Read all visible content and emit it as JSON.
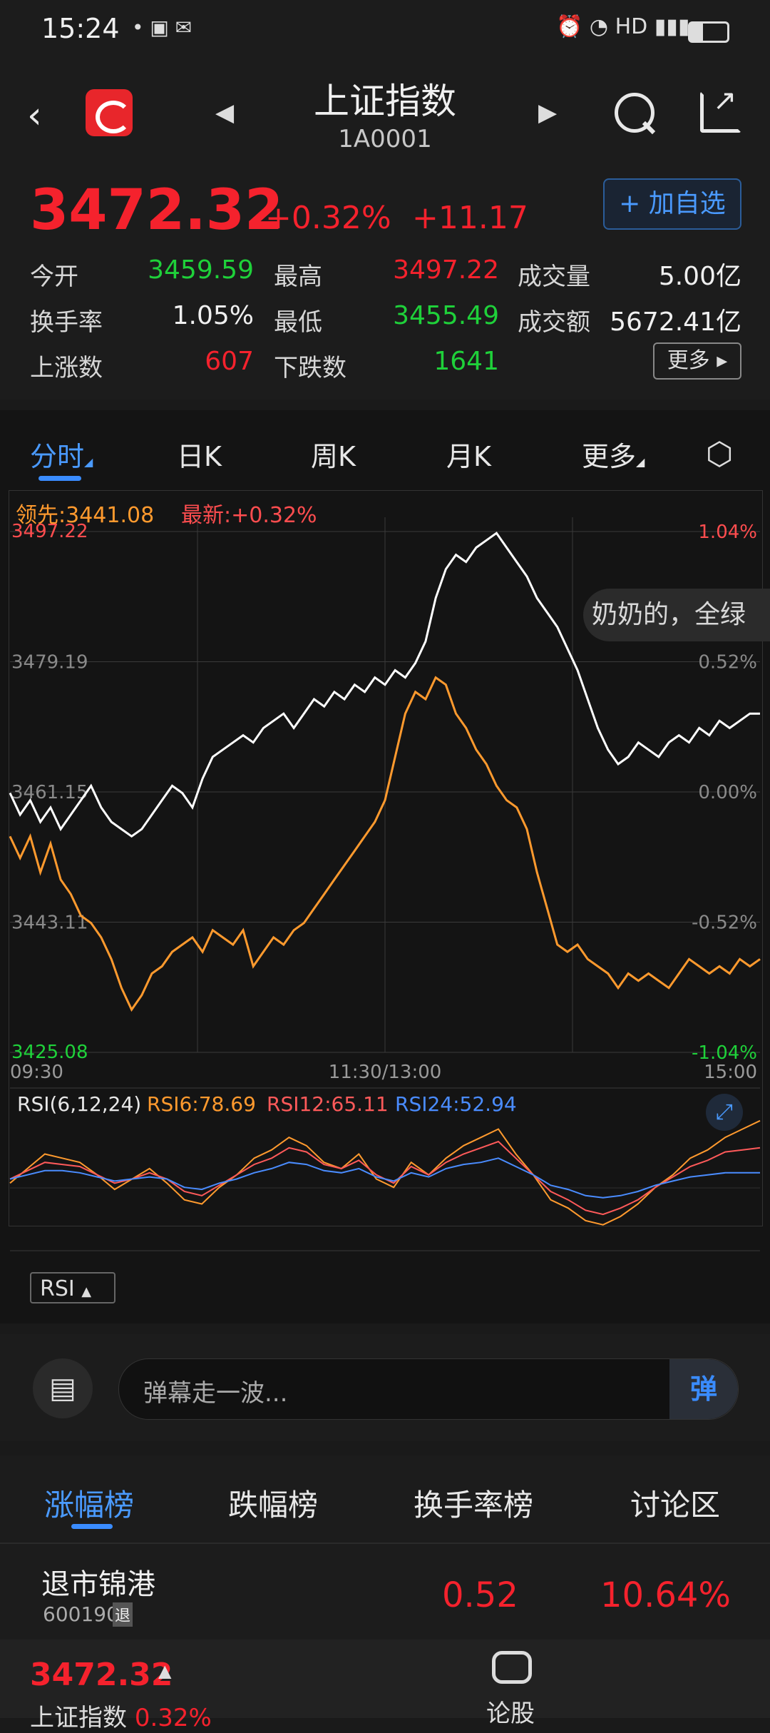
{
  "status": {
    "time": "15:24"
  },
  "header": {
    "title": "上证指数",
    "code": "1A0001",
    "add_watch": "加自选"
  },
  "quote": {
    "price": "3472.32",
    "pct": "+0.32%",
    "change": "+11.17",
    "rows": [
      [
        {
          "label": "今开",
          "value": "3459.59",
          "color": "green"
        },
        {
          "label": "最高",
          "value": "3497.22",
          "color": "red"
        },
        {
          "label": "成交量",
          "value": "5.00亿",
          "color": "white"
        }
      ],
      [
        {
          "label": "换手率",
          "value": "1.05%",
          "color": "white"
        },
        {
          "label": "最低",
          "value": "3455.49",
          "color": "green"
        },
        {
          "label": "成交额",
          "value": "5672.41亿",
          "color": "white"
        }
      ],
      [
        {
          "label": "上涨数",
          "value": "607",
          "color": "red"
        },
        {
          "label": "下跌数",
          "value": "1641",
          "color": "green"
        }
      ]
    ],
    "more": "更多"
  },
  "chart_tabs": [
    "分时",
    "日K",
    "周K",
    "月K",
    "更多"
  ],
  "chart_legend": {
    "lead": "领先:3441.08",
    "latest": "最新:+0.32%"
  },
  "danmu_bubble": "奶奶的，全绿",
  "chart_data": [
    {
      "type": "line",
      "title": "",
      "x_ticks": [
        "09:30",
        "11:30/13:00",
        "15:00"
      ],
      "y_ticks_left": [
        "3497.22",
        "3479.19",
        "3461.15",
        "3443.11",
        "3425.08"
      ],
      "y_ticks_right": [
        "1.04%",
        "0.52%",
        "0.00%",
        "-0.52%",
        "-1.04%"
      ],
      "ylim": [
        3425.08,
        3497.22
      ],
      "series": [
        {
          "name": "最新",
          "color": "#ffffff",
          "values": [
            3461,
            3458,
            3460,
            3457,
            3459,
            3456,
            3458,
            3460,
            3462,
            3459,
            3457,
            3456,
            3455,
            3456,
            3458,
            3460,
            3462,
            3461,
            3459,
            3463,
            3466,
            3467,
            3468,
            3469,
            3468,
            3470,
            3471,
            3472,
            3470,
            3472,
            3474,
            3473,
            3475,
            3474,
            3476,
            3475,
            3477,
            3476,
            3478,
            3477,
            3479,
            3482,
            3488,
            3492,
            3494,
            3493,
            3495,
            3496,
            3497,
            3495,
            3493,
            3491,
            3488,
            3486,
            3484,
            3481,
            3478,
            3474,
            3470,
            3467,
            3465,
            3466,
            3468,
            3467,
            3466,
            3468,
            3469,
            3468,
            3470,
            3469,
            3471,
            3470,
            3471,
            3472,
            3472
          ]
        },
        {
          "name": "领先",
          "color": "#ff9a2e",
          "values": [
            3455,
            3452,
            3455,
            3450,
            3454,
            3449,
            3447,
            3444,
            3443,
            3441,
            3438,
            3434,
            3431,
            3433,
            3436,
            3437,
            3439,
            3440,
            3441,
            3439,
            3442,
            3441,
            3440,
            3442,
            3437,
            3439,
            3441,
            3440,
            3442,
            3443,
            3445,
            3447,
            3449,
            3451,
            3453,
            3455,
            3457,
            3460,
            3466,
            3472,
            3475,
            3474,
            3477,
            3476,
            3472,
            3470,
            3467,
            3465,
            3462,
            3460,
            3459,
            3456,
            3450,
            3445,
            3440,
            3439,
            3440,
            3438,
            3437,
            3436,
            3434,
            3436,
            3435,
            3436,
            3435,
            3434,
            3436,
            3438,
            3437,
            3436,
            3437,
            3436,
            3438,
            3437,
            3438
          ]
        }
      ]
    },
    {
      "type": "line",
      "title": "RSI(6,12,24)",
      "legend": [
        "RSI6:78.69",
        "RSI12:65.11",
        "RSI24:52.94"
      ],
      "series": [
        {
          "name": "RSI6",
          "color": "#ff9a2e",
          "values": [
            48,
            55,
            62,
            60,
            58,
            52,
            45,
            50,
            55,
            48,
            40,
            38,
            46,
            52,
            60,
            64,
            70,
            66,
            58,
            55,
            62,
            50,
            46,
            58,
            52,
            60,
            66,
            70,
            74,
            62,
            52,
            40,
            36,
            30,
            28,
            32,
            38,
            46,
            52,
            60,
            64,
            70,
            74,
            78
          ]
        },
        {
          "name": "RSI12",
          "color": "#ff5a5a",
          "values": [
            50,
            54,
            58,
            57,
            56,
            52,
            48,
            50,
            53,
            50,
            44,
            42,
            47,
            52,
            57,
            60,
            65,
            63,
            57,
            55,
            59,
            52,
            48,
            56,
            52,
            58,
            62,
            65,
            68,
            60,
            52,
            44,
            40,
            35,
            33,
            36,
            40,
            46,
            51,
            56,
            59,
            63,
            64,
            65
          ]
        },
        {
          "name": "RSI24",
          "color": "#4a8cff",
          "values": [
            50,
            52,
            54,
            54,
            53,
            51,
            49,
            50,
            51,
            50,
            46,
            45,
            48,
            50,
            53,
            55,
            58,
            57,
            54,
            53,
            55,
            51,
            49,
            53,
            51,
            55,
            57,
            58,
            60,
            56,
            52,
            47,
            45,
            42,
            41,
            42,
            44,
            47,
            49,
            51,
            52,
            53,
            53,
            53
          ]
        }
      ]
    }
  ],
  "rsi_selector": "RSI",
  "danmu_placeholder": "弹幕走一波...",
  "danmu_button": "弹",
  "rank_tabs": [
    "涨幅榜",
    "跌幅榜",
    "换手率榜",
    "讨论区"
  ],
  "rank_rows": [
    {
      "name": "退市锦港",
      "code": "600190",
      "tag": "退",
      "price": "0.52",
      "pct": "10.64%"
    }
  ],
  "bottom": {
    "price": "3472.32",
    "name": "上证指数",
    "pct": "0.32%",
    "discuss": "论股"
  }
}
